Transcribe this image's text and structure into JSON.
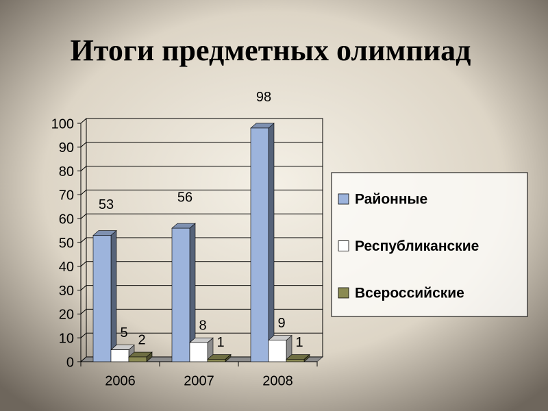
{
  "chart_data": {
    "type": "bar3d",
    "title": "Итоги предметных олимпиад",
    "categories": [
      "2006",
      "2007",
      "2008"
    ],
    "series": [
      {
        "name": "Районные",
        "color": "#9db4dc",
        "values": [
          53,
          56,
          98
        ]
      },
      {
        "name": "Республиканские",
        "color": "#ffffff",
        "values": [
          5,
          8,
          9
        ]
      },
      {
        "name": "Всероссийские",
        "color": "#8a8a52",
        "values": [
          2,
          1,
          1
        ]
      }
    ],
    "ylim": [
      0,
      100
    ],
    "yticks": [
      0,
      10,
      20,
      30,
      40,
      50,
      60,
      70,
      80,
      90,
      100
    ],
    "grid": true,
    "legend": "right",
    "data_labels": true
  }
}
